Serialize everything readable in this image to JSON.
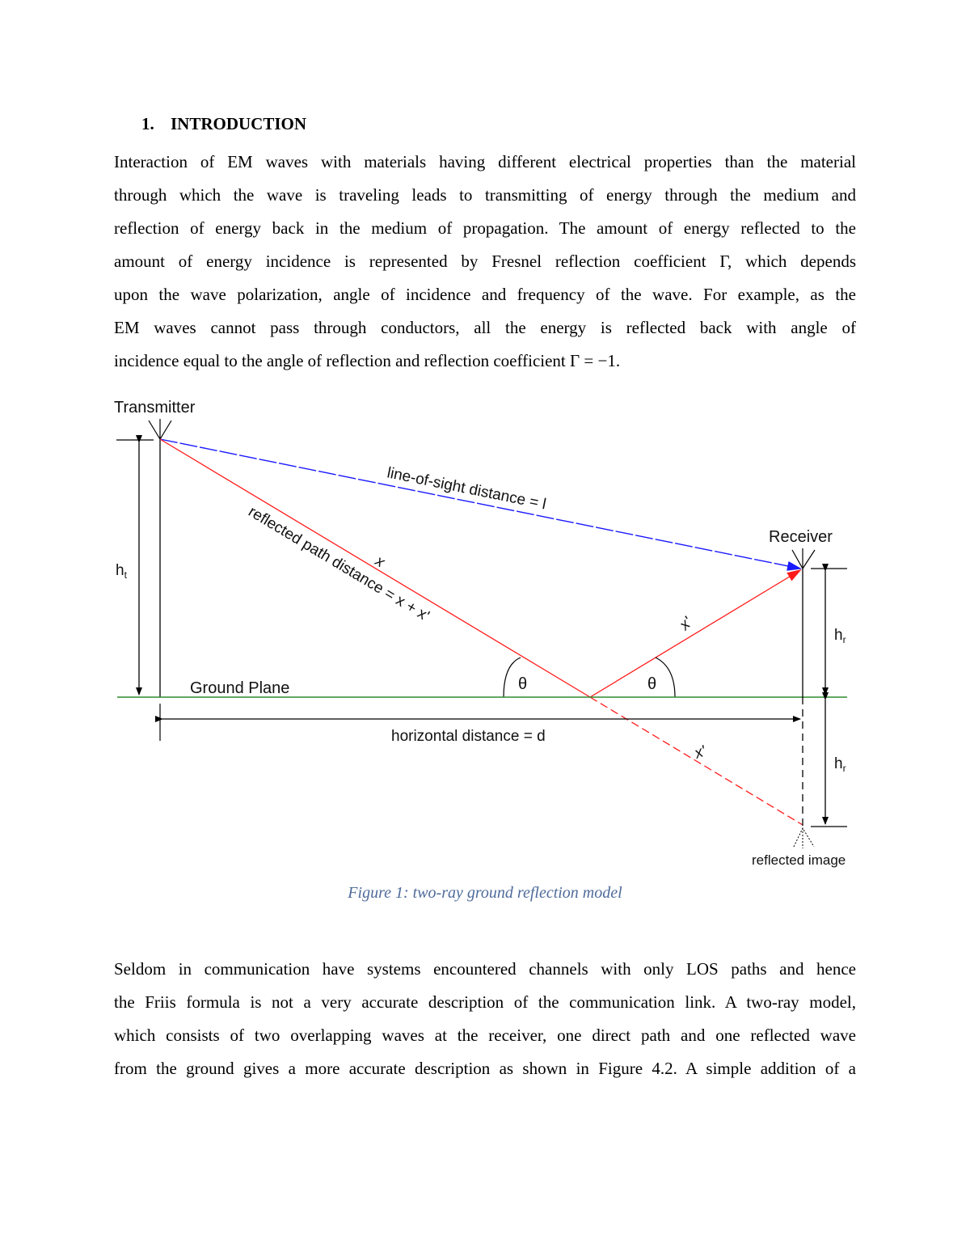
{
  "section": {
    "number": "1.",
    "title": "INTRODUCTION"
  },
  "paragraph1": [
    "Interaction of EM waves with materials having different electrical properties than the material",
    "through which the wave is traveling leads to transmitting of energy through the medium and",
    "reflection of energy back in the medium of propagation. The amount of energy reflected to the",
    "amount of energy incidence is represented by Fresnel reflection coefficient Γ, which depends",
    "upon the wave polarization, angle of incidence and frequency of the wave. For example, as the",
    "EM waves cannot pass through conductors, all the energy is reflected back with angle of",
    "incidence equal to the angle of reflection and reflection coefficient Γ = −1."
  ],
  "figure": {
    "transmitter": "Transmitter",
    "receiver": "Receiver",
    "los_label": "line-of-sight distance = l",
    "reflected_label": "reflected path distance = x + x'",
    "x_label": "x",
    "x_prime_label": "x'",
    "x_prime_image_label": "x'",
    "theta1": "θ",
    "theta2": "θ",
    "ground_plane": "Ground Plane",
    "horizontal_distance": "horizontal distance = d",
    "ht": "h",
    "ht_sub": "t",
    "hr": "h",
    "hr_sub": "r",
    "hr2": "h",
    "hr2_sub": "r",
    "reflected_image": "reflected image",
    "colors": {
      "los": "#1a1aff",
      "reflected": "#ff1a1a",
      "ground": "#2e8b2e"
    }
  },
  "caption": "Figure 1: two-ray ground reflection model",
  "paragraph2": [
    "Seldom in communication have systems encountered channels with only LOS paths and hence",
    "the Friis formula is not a very accurate description of the communication link. A two-ray model,",
    "which consists of two overlapping waves at the receiver, one direct path and one reflected wave",
    "from the ground gives a more accurate description as shown in Figure 4.2. A simple addition of a"
  ]
}
